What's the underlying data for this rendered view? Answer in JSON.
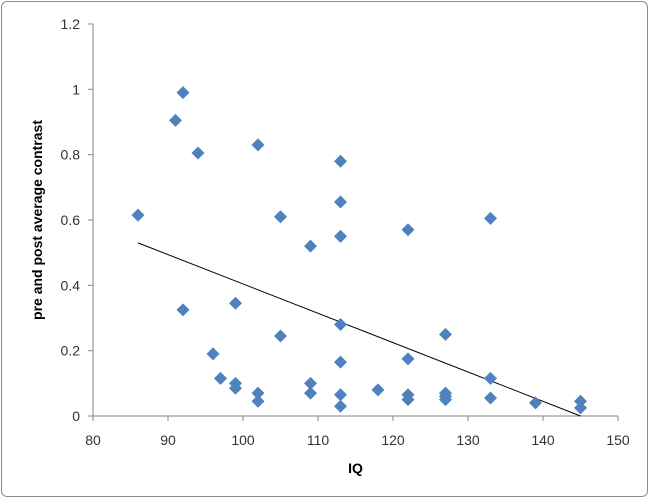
{
  "chart_data": {
    "type": "scatter",
    "title": "",
    "xlabel": "IQ",
    "ylabel": "pre and post average contrast",
    "xlim": [
      80,
      150
    ],
    "ylim": [
      0,
      1.2
    ],
    "x_ticks": [
      80,
      90,
      100,
      110,
      120,
      130,
      140,
      150
    ],
    "y_ticks": [
      0,
      0.2,
      0.4,
      0.6,
      0.8,
      1,
      1.2
    ],
    "x_tick_labels": [
      "80",
      "90",
      "100",
      "110",
      "120",
      "130",
      "140",
      "150"
    ],
    "y_tick_labels": [
      "0",
      "0.2",
      "0.4",
      "0.6",
      "0.8",
      "1",
      "1.2"
    ],
    "grid": false,
    "legend": "none",
    "marker": "diamond",
    "marker_color": "#4f81bd",
    "trendline_color": "#000000",
    "series": [
      {
        "points": [
          [
            86,
            0.615
          ],
          [
            91,
            0.905
          ],
          [
            92,
            0.99
          ],
          [
            92,
            0.325
          ],
          [
            94,
            0.805
          ],
          [
            96,
            0.19
          ],
          [
            97,
            0.115
          ],
          [
            99,
            0.345
          ],
          [
            99,
            0.1
          ],
          [
            99,
            0.085
          ],
          [
            102,
            0.83
          ],
          [
            102,
            0.07
          ],
          [
            102,
            0.045
          ],
          [
            105,
            0.61
          ],
          [
            105,
            0.245
          ],
          [
            109,
            0.52
          ],
          [
            109,
            0.1
          ],
          [
            109,
            0.07
          ],
          [
            113,
            0.78
          ],
          [
            113,
            0.655
          ],
          [
            113,
            0.55
          ],
          [
            113,
            0.28
          ],
          [
            113,
            0.165
          ],
          [
            113,
            0.065
          ],
          [
            113,
            0.03
          ],
          [
            118,
            0.08
          ],
          [
            122,
            0.57
          ],
          [
            122,
            0.175
          ],
          [
            122,
            0.065
          ],
          [
            122,
            0.05
          ],
          [
            127,
            0.25
          ],
          [
            127,
            0.07
          ],
          [
            127,
            0.06
          ],
          [
            127,
            0.05
          ],
          [
            133,
            0.605
          ],
          [
            133,
            0.115
          ],
          [
            133,
            0.055
          ],
          [
            139,
            0.04
          ],
          [
            145,
            0.045
          ],
          [
            145,
            0.025
          ]
        ]
      }
    ],
    "trendline": {
      "type": "linear",
      "x": [
        86,
        145
      ],
      "y": [
        0.53,
        0.0
      ]
    }
  }
}
